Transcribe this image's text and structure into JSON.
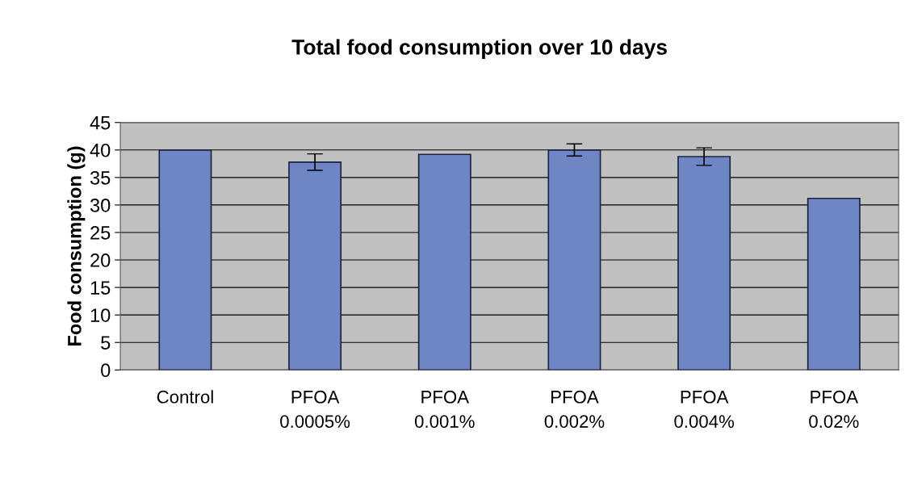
{
  "chart_data": {
    "type": "bar",
    "title": "Total food consumption over 10 days",
    "ylabel": "Food consumption (g)",
    "categories": [
      "Control",
      "PFOA\n0.0005%",
      "PFOA\n0.001%",
      "PFOA\n0.002%",
      "PFOA\n0.004%",
      "PFOA\n0.02%"
    ],
    "values": [
      40,
      37.8,
      39.2,
      40,
      38.8,
      31.2
    ],
    "errors": [
      null,
      1.5,
      null,
      1.1,
      1.6,
      null
    ],
    "color": "#6f86c4",
    "ylim": [
      0,
      45
    ],
    "yticks": [
      0,
      5,
      10,
      15,
      20,
      25,
      30,
      35,
      40,
      45
    ],
    "grid": "y"
  }
}
